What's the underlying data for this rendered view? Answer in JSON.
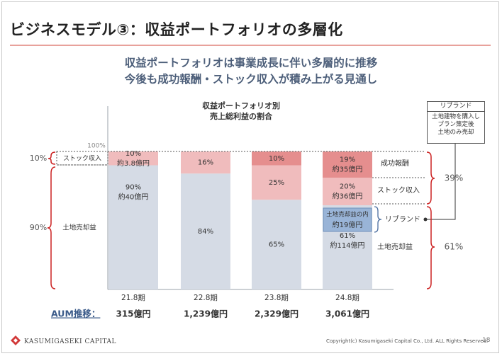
{
  "slide": {
    "title": "ビジネスモデル③：収益ポートフォリオの多層化",
    "headline_1": "収益ポートフォリオは事業成長に伴い多層的に推移",
    "headline_2": "今後も成功報酬・ストック収入が積み上がる見通し",
    "page_number": "18",
    "copyright": "Copyright(c) Kasumigaseki Capital Co., Ltd. ALL Rights Reserved.",
    "company_name": "KASUMIGASEKI CAPITAL",
    "colors": {
      "land_sale": "#d5dbe5",
      "stock": "#f0bcbd",
      "success_fee": "#e58e8e",
      "rebrand": "#99b4d7",
      "brace": "#cc2222",
      "headline": "#4d5f7a",
      "aum_label": "#3b5b8a"
    }
  },
  "chart_data": {
    "type": "bar",
    "stacked": true,
    "title": "収益ポートフォリオ別\n売上総利益の割合",
    "title_line1": "収益ポートフォリオ別",
    "title_line2": "売上総利益の割合",
    "ylim": [
      0,
      100
    ],
    "y_top_label": "100%",
    "categories": [
      "21.8期",
      "22.8期",
      "23.8期",
      "24.8期"
    ],
    "series": [
      {
        "name": "土地売却益",
        "values": [
          90,
          84,
          65,
          61
        ]
      },
      {
        "name": "ストック収入",
        "values": [
          10,
          16,
          25,
          20
        ]
      },
      {
        "name": "成功報酬",
        "values": [
          0,
          0,
          10,
          19
        ]
      }
    ],
    "segment_labels": [
      {
        "land": "90%\n約40億円",
        "stock": "10%\n約3.8億円",
        "success": ""
      },
      {
        "land": "84%",
        "stock": "16%",
        "success": ""
      },
      {
        "land": "65%",
        "stock": "25%",
        "success": "10%"
      },
      {
        "land": "61%\n約114億円",
        "stock": "20%\n約36億円",
        "success": "19%\n約35億円"
      }
    ],
    "rebrand_inner": {
      "label_line1": "土地売却益の内",
      "label_line2": "約19億円"
    },
    "left_annotations": {
      "stock_pct": "10%",
      "stock_label": "ストック収入",
      "land_pct": "90%",
      "land_label": "土地売却益"
    },
    "right_annotations": {
      "success_label": "成功報酬",
      "stock_label": "ストック収入",
      "rebrand_label": "リブランド",
      "land_label": "土地売却益",
      "upper_pct": "39%",
      "lower_pct": "61%"
    },
    "aum": {
      "label": "AUM推移：",
      "values": [
        "315億円",
        "1,239億円",
        "2,329億円",
        "3,061億円"
      ]
    },
    "note": {
      "title": "リブランド",
      "lines": [
        "土地建物を購入し",
        "プラン策定後",
        "土地のみ売却"
      ]
    }
  }
}
